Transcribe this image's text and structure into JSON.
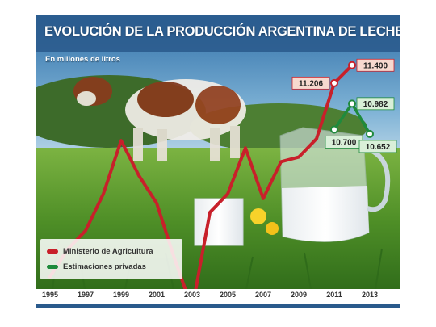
{
  "colors": {
    "header": "#2a5a8c",
    "ministry_line": "#c8202a",
    "private_line": "#1f8a3c",
    "ministry_label_bg": "#f7d9cf",
    "private_label_bg": "#d9efd8"
  },
  "chart_data": {
    "type": "line",
    "title": "EVOLUCIÓN DE LA PRODUCCIÓN ARGENTINA DE LECHE",
    "subtitle": "En millones de litros",
    "x_ticks": [
      "1995",
      "1997",
      "1999",
      "2001",
      "2003",
      "2005",
      "2007",
      "2009",
      "2011",
      "2013"
    ],
    "ylim": [
      9000,
      11600
    ],
    "legend_position": "bottom-left",
    "grid": false,
    "series": [
      {
        "name": "Ministerio de Agricultura",
        "color": "#c8202a",
        "points": [
          {
            "x": 1995,
            "y": 9100
          },
          {
            "x": 1996,
            "y": 9400
          },
          {
            "x": 1997,
            "y": 9600
          },
          {
            "x": 1998,
            "y": 10000
          },
          {
            "x": 1999,
            "y": 10580
          },
          {
            "x": 2000,
            "y": 10200
          },
          {
            "x": 2001,
            "y": 9900
          },
          {
            "x": 2002,
            "y": 9300
          },
          {
            "x": 2003,
            "y": 8750
          },
          {
            "x": 2004,
            "y": 9800
          },
          {
            "x": 2005,
            "y": 10000
          },
          {
            "x": 2006,
            "y": 10500
          },
          {
            "x": 2007,
            "y": 9950
          },
          {
            "x": 2008,
            "y": 10350
          },
          {
            "x": 2009,
            "y": 10400
          },
          {
            "x": 2010,
            "y": 10600
          },
          {
            "x": 2011,
            "y": 11206
          },
          {
            "x": 2012,
            "y": 11400
          }
        ]
      },
      {
        "name": "Estimaciones privadas",
        "color": "#1f8a3c",
        "points": [
          {
            "x": 2011,
            "y": 10700
          },
          {
            "x": 2012,
            "y": 10982
          },
          {
            "x": 2013,
            "y": 10652
          }
        ]
      }
    ],
    "data_labels": [
      {
        "series": 0,
        "x": 2011,
        "text": "11.206",
        "side": "left"
      },
      {
        "series": 0,
        "x": 2012,
        "text": "11.400",
        "side": "right"
      },
      {
        "series": 1,
        "x": 2011,
        "text": "10.700",
        "side": "below"
      },
      {
        "series": 1,
        "x": 2012,
        "text": "10.982",
        "side": "right"
      },
      {
        "series": 1,
        "x": 2013,
        "text": "10.652",
        "side": "below"
      }
    ]
  }
}
